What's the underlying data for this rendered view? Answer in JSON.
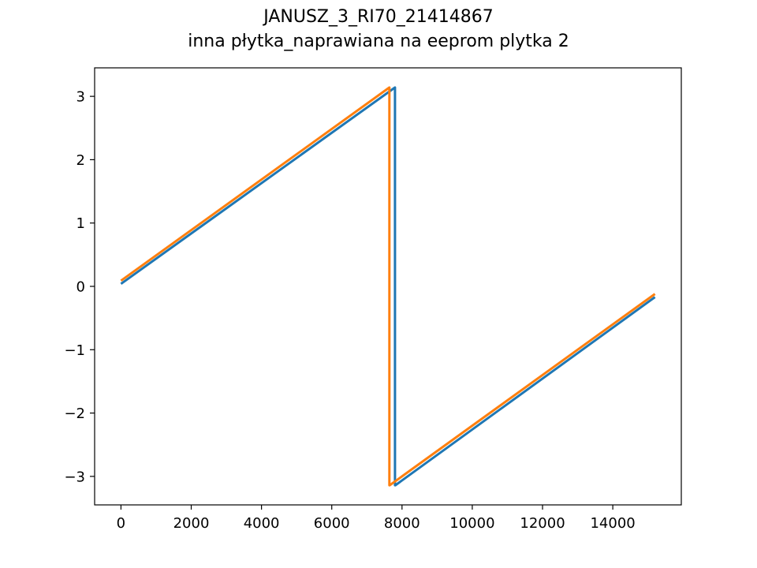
{
  "chart_data": {
    "type": "line",
    "title": "JANUSZ_3_RI70_21414867",
    "subtitle": "inna płytka_naprawiana na eeprom plytka 2",
    "xlabel": "",
    "ylabel": "",
    "xlim": [
      -750,
      15950
    ],
    "ylim": [
      -3.45,
      3.45
    ],
    "xticks": [
      0,
      2000,
      4000,
      6000,
      8000,
      10000,
      12000,
      14000
    ],
    "yticks": [
      -3,
      -2,
      -1,
      0,
      1,
      2,
      3
    ],
    "grid": false,
    "legend": "none",
    "series": [
      {
        "color": "#1f77b4",
        "x": [
          0,
          7800,
          7800,
          7810,
          15200
        ],
        "y": [
          0.04,
          3.14,
          -3.14,
          -3.14,
          -0.17
        ]
      },
      {
        "color": "#ff7f0e",
        "x": [
          0,
          7640,
          7640,
          7650,
          15200
        ],
        "y": [
          0.09,
          3.14,
          -3.14,
          -3.14,
          -0.12
        ]
      }
    ]
  }
}
